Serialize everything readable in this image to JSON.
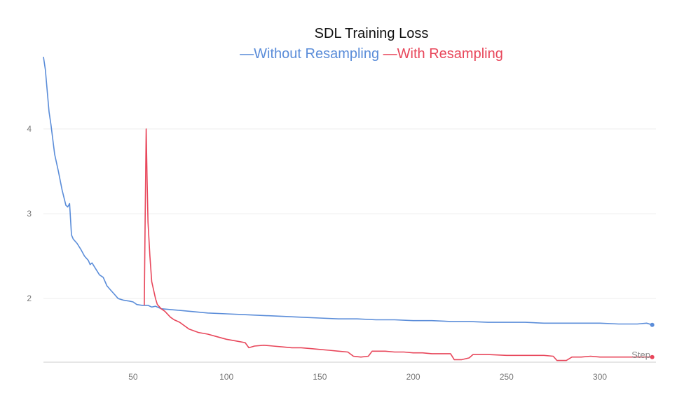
{
  "chart_data": {
    "type": "line",
    "title": "SDL Training Loss",
    "xlabel": "Step",
    "ylabel": "",
    "xlim": [
      2,
      330
    ],
    "ylim": [
      1.25,
      4.9
    ],
    "x_ticks": [
      50,
      100,
      150,
      200,
      250,
      300
    ],
    "y_ticks": [
      2,
      3,
      4
    ],
    "grid": "horizontal",
    "legend_position": "top-center",
    "series": [
      {
        "name": "Without Resampling",
        "color": "#5b8dd9",
        "points": [
          [
            2,
            4.85
          ],
          [
            3,
            4.7
          ],
          [
            5,
            4.2
          ],
          [
            6,
            4.05
          ],
          [
            8,
            3.7
          ],
          [
            10,
            3.5
          ],
          [
            12,
            3.28
          ],
          [
            14,
            3.1
          ],
          [
            15,
            3.08
          ],
          [
            16,
            3.12
          ],
          [
            17,
            2.75
          ],
          [
            18,
            2.7
          ],
          [
            20,
            2.65
          ],
          [
            22,
            2.58
          ],
          [
            24,
            2.5
          ],
          [
            26,
            2.45
          ],
          [
            27,
            2.4
          ],
          [
            28,
            2.42
          ],
          [
            30,
            2.35
          ],
          [
            32,
            2.28
          ],
          [
            34,
            2.25
          ],
          [
            36,
            2.15
          ],
          [
            38,
            2.1
          ],
          [
            40,
            2.05
          ],
          [
            42,
            2.0
          ],
          [
            45,
            1.98
          ],
          [
            48,
            1.97
          ],
          [
            50,
            1.96
          ],
          [
            52,
            1.93
          ],
          [
            55,
            1.92
          ],
          [
            58,
            1.92
          ],
          [
            60,
            1.9
          ],
          [
            62,
            1.91
          ],
          [
            65,
            1.88
          ],
          [
            70,
            1.87
          ],
          [
            75,
            1.86
          ],
          [
            80,
            1.85
          ],
          [
            90,
            1.83
          ],
          [
            100,
            1.82
          ],
          [
            110,
            1.81
          ],
          [
            120,
            1.8
          ],
          [
            130,
            1.79
          ],
          [
            140,
            1.78
          ],
          [
            150,
            1.77
          ],
          [
            160,
            1.76
          ],
          [
            170,
            1.76
          ],
          [
            180,
            1.75
          ],
          [
            190,
            1.75
          ],
          [
            200,
            1.74
          ],
          [
            210,
            1.74
          ],
          [
            220,
            1.73
          ],
          [
            230,
            1.73
          ],
          [
            240,
            1.72
          ],
          [
            250,
            1.72
          ],
          [
            260,
            1.72
          ],
          [
            270,
            1.71
          ],
          [
            280,
            1.71
          ],
          [
            290,
            1.71
          ],
          [
            300,
            1.71
          ],
          [
            310,
            1.7
          ],
          [
            320,
            1.7
          ],
          [
            325,
            1.71
          ],
          [
            328,
            1.69
          ]
        ]
      },
      {
        "name": "With Resampling",
        "color": "#e8475b",
        "points": [
          [
            56,
            1.92
          ],
          [
            56.5,
            3.0
          ],
          [
            57,
            4.0
          ],
          [
            57.5,
            3.4
          ],
          [
            58,
            2.9
          ],
          [
            59,
            2.5
          ],
          [
            60,
            2.2
          ],
          [
            61,
            2.1
          ],
          [
            62,
            2.0
          ],
          [
            63,
            1.93
          ],
          [
            65,
            1.88
          ],
          [
            67,
            1.85
          ],
          [
            70,
            1.78
          ],
          [
            72,
            1.75
          ],
          [
            75,
            1.72
          ],
          [
            80,
            1.64
          ],
          [
            85,
            1.6
          ],
          [
            90,
            1.58
          ],
          [
            95,
            1.55
          ],
          [
            100,
            1.52
          ],
          [
            105,
            1.5
          ],
          [
            110,
            1.48
          ],
          [
            112,
            1.42
          ],
          [
            115,
            1.44
          ],
          [
            120,
            1.45
          ],
          [
            125,
            1.44
          ],
          [
            130,
            1.43
          ],
          [
            135,
            1.42
          ],
          [
            140,
            1.42
          ],
          [
            145,
            1.41
          ],
          [
            150,
            1.4
          ],
          [
            155,
            1.39
          ],
          [
            160,
            1.38
          ],
          [
            165,
            1.37
          ],
          [
            168,
            1.32
          ],
          [
            172,
            1.31
          ],
          [
            176,
            1.32
          ],
          [
            178,
            1.38
          ],
          [
            185,
            1.38
          ],
          [
            190,
            1.37
          ],
          [
            195,
            1.37
          ],
          [
            200,
            1.36
          ],
          [
            205,
            1.36
          ],
          [
            210,
            1.35
          ],
          [
            215,
            1.35
          ],
          [
            220,
            1.35
          ],
          [
            222,
            1.28
          ],
          [
            226,
            1.28
          ],
          [
            230,
            1.3
          ],
          [
            232,
            1.34
          ],
          [
            240,
            1.34
          ],
          [
            250,
            1.33
          ],
          [
            260,
            1.33
          ],
          [
            270,
            1.33
          ],
          [
            275,
            1.32
          ],
          [
            277,
            1.27
          ],
          [
            282,
            1.27
          ],
          [
            285,
            1.31
          ],
          [
            290,
            1.31
          ],
          [
            295,
            1.32
          ],
          [
            300,
            1.31
          ],
          [
            310,
            1.31
          ],
          [
            320,
            1.31
          ],
          [
            328,
            1.31
          ]
        ]
      }
    ]
  }
}
